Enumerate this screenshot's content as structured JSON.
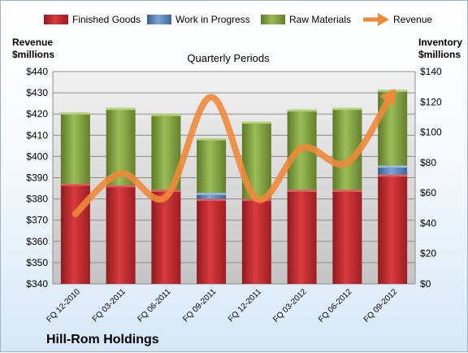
{
  "chart_data": {
    "type": "bar",
    "title": "Hill-Rom Holdings",
    "subtitle": "Quarterly Periods",
    "left_axis_label": [
      "Revenue",
      "$millions"
    ],
    "right_axis_label": [
      "Inventory",
      "$millions"
    ],
    "categories": [
      "FQ 12-2010",
      "FQ 03-2011",
      "FQ 06-2011",
      "FQ 09-2011",
      "FQ 12-2011",
      "FQ 03-2012",
      "FQ 06-2012",
      "FQ 09-2012"
    ],
    "ylim_left": [
      340,
      440
    ],
    "ylim_right": [
      0,
      140
    ],
    "yticks_left": [
      "$440",
      "$430",
      "$420",
      "$410",
      "$400",
      "$390",
      "$380",
      "$370",
      "$360",
      "$350",
      "$340"
    ],
    "yticks_right": [
      "$140",
      "$120",
      "$100",
      "$80",
      "$60",
      "$40",
      "$20",
      "$0"
    ],
    "stacked": true,
    "legend_position": "top",
    "series": [
      {
        "name": "Finished Goods",
        "axis": "right",
        "color": "#c0282d",
        "values": [
          66,
          65,
          62,
          56,
          56,
          62,
          62,
          72
        ]
      },
      {
        "name": "Work in Progress",
        "axis": "right",
        "color": "#4f81bd",
        "values": [
          0,
          0,
          0,
          4,
          0,
          0,
          0,
          6
        ]
      },
      {
        "name": "Raw Materials",
        "axis": "right",
        "color": "#7d9c3b",
        "values": [
          47,
          51,
          50,
          36,
          51,
          53,
          54,
          50
        ]
      }
    ],
    "line_series": {
      "name": "Revenue",
      "axis": "left",
      "color": "#f0883a",
      "values": [
        373,
        392,
        381,
        428,
        380,
        404,
        397,
        430
      ]
    },
    "grid": true
  }
}
